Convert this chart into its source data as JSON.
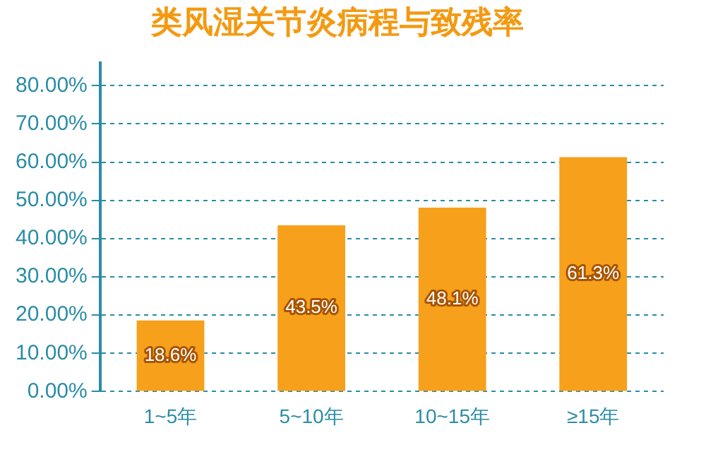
{
  "chart_data": {
    "type": "bar",
    "title": "类风湿关节炎病程与致残率",
    "categories": [
      "1~5年",
      "5~10年",
      "10~15年",
      "≥15年"
    ],
    "values": [
      18.6,
      43.5,
      48.1,
      61.3
    ],
    "color": "#f7a01c",
    "value_labels": [
      "18.6%",
      "43.5%",
      "48.1%",
      "61.3%"
    ],
    "ylim": [
      0,
      86
    ],
    "yticks": [
      {
        "value": 0,
        "label": "0.00%"
      },
      {
        "value": 10,
        "label": "10.00%"
      },
      {
        "value": 20,
        "label": "20.00%"
      },
      {
        "value": 30,
        "label": "30.00%"
      },
      {
        "value": 40,
        "label": "40.00%"
      },
      {
        "value": 50,
        "label": "50.00%"
      },
      {
        "value": 60,
        "label": "60.00%"
      },
      {
        "value": 70,
        "label": "70.00%"
      },
      {
        "value": 80,
        "label": "80.00%"
      }
    ],
    "grid": "y",
    "legend": false
  }
}
